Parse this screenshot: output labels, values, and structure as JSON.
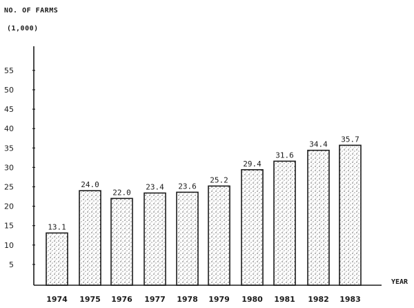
{
  "chart_data": {
    "type": "bar",
    "title": "NO. OF FARMS",
    "ylabel": "(1,000)",
    "xlabel": "YEAR",
    "categories": [
      "1974",
      "1975",
      "1976",
      "1977",
      "1978",
      "1979",
      "1980",
      "1981",
      "1982",
      "1983"
    ],
    "values": [
      13.1,
      24.0,
      22.0,
      23.4,
      23.6,
      25.2,
      29.4,
      31.6,
      34.4,
      35.7
    ],
    "value_labels": [
      "13.1",
      "24.0",
      "22.0",
      "23.4",
      "23.6",
      "25.2",
      "29.4",
      "31.6",
      "34.4",
      "35.7"
    ],
    "yticks": [
      5,
      10,
      15,
      20,
      25,
      30,
      35,
      40,
      45,
      50,
      55
    ],
    "ylim": [
      0,
      60
    ],
    "grid": false,
    "legend": null,
    "bar_fill": "stippled"
  },
  "header": {
    "title": "NO. OF FARMS",
    "unit": "(1,000)"
  },
  "axis": {
    "xlabel": "YEAR"
  },
  "colors": {
    "ink": "#1a1a1a",
    "background": "#ffffff"
  }
}
